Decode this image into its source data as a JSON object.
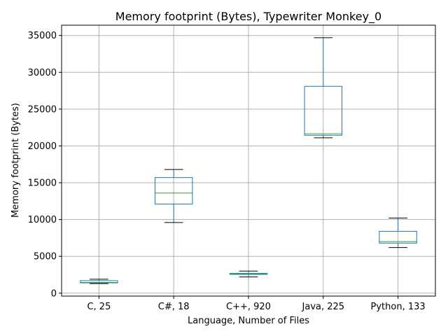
{
  "chart_data": {
    "type": "box",
    "title": "Memory footprint (Bytes), Typewriter Monkey_0",
    "xlabel": "Language, Number of Files",
    "ylabel": "Memory footprint (Bytes)",
    "categories": [
      "C, 25",
      "C#, 18",
      "C++, 920",
      "Java, 225",
      "Python, 133"
    ],
    "boxes": [
      {
        "whisker_low": 1300,
        "q1": 1400,
        "median": 1450,
        "q3": 1700,
        "whisker_high": 1900
      },
      {
        "whisker_low": 9600,
        "q1": 12100,
        "median": 13600,
        "q3": 15700,
        "whisker_high": 16800
      },
      {
        "whisker_low": 2200,
        "q1": 2550,
        "median": 2600,
        "q3": 2700,
        "whisker_high": 3000
      },
      {
        "whisker_low": 21100,
        "q1": 21450,
        "median": 21650,
        "q3": 28100,
        "whisker_high": 34700
      },
      {
        "whisker_low": 6200,
        "q1": 6800,
        "median": 7000,
        "q3": 8400,
        "whisker_high": 10200
      }
    ],
    "ylim": [
      -400,
      36400
    ],
    "yticks": [
      0,
      5000,
      10000,
      15000,
      20000,
      25000,
      30000,
      35000
    ],
    "grid": true,
    "colors": {
      "box": "#1f77b4",
      "median": "#2ca02c",
      "whisker_cap": "#000000",
      "grid": "#b0b0b0"
    }
  }
}
